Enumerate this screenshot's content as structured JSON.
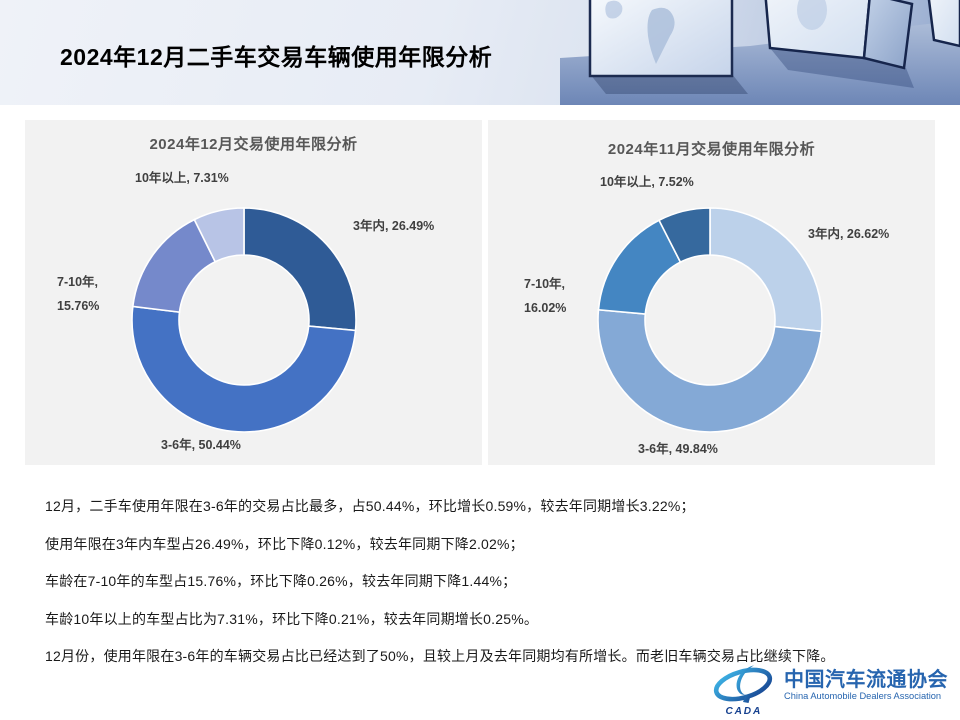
{
  "header": {
    "title": "2024年12月二手车交易车辆使用年限分析"
  },
  "chart_data": [
    {
      "type": "pie",
      "subtype": "donut",
      "title": "2024年12月交易使用年限分析",
      "unit": "%",
      "categories": [
        "3年内",
        "3-6年",
        "7-10年",
        "10年以上"
      ],
      "values": [
        26.49,
        50.44,
        15.76,
        7.31
      ],
      "colors": [
        "#2F5B96",
        "#4472C4",
        "#7589CB",
        "#B8C4E6"
      ],
      "legend": "none",
      "labels": "outside"
    },
    {
      "type": "pie",
      "subtype": "donut",
      "title": "2024年11月交易使用年限分析",
      "unit": "%",
      "categories": [
        "3年内",
        "3-6年",
        "7-10年",
        "10年以上"
      ],
      "values": [
        26.62,
        49.84,
        16.02,
        7.52
      ],
      "colors": [
        "#BCD1EA",
        "#84A9D6",
        "#4486C2",
        "#36699E"
      ],
      "legend": "none",
      "labels": "outside"
    }
  ],
  "summary": {
    "lines": [
      "12月，二手车使用年限在3-6年的交易占比最多，占50.44%，环比增长0.59%，较去年同期增长3.22%；",
      "使用年限在3年内车型占26.49%，环比下降0.12%，较去年同期下降2.02%；",
      "车龄在7-10年的车型占15.76%，环比下降0.26%，较去年同期下降1.44%；",
      "车龄10年以上的车型占比为7.31%，环比下降0.21%，较去年同期增长0.25%。",
      "12月份，使用年限在3-6年的车辆交易占比已经达到了50%，且较上月及去年同期均有所增长。而老旧车辆交易占比继续下降。"
    ]
  },
  "footer_logo": {
    "mark_text": "CADA",
    "name_cn": "中国汽车流通协会",
    "name_en": "China Automobile Dealers Association"
  }
}
